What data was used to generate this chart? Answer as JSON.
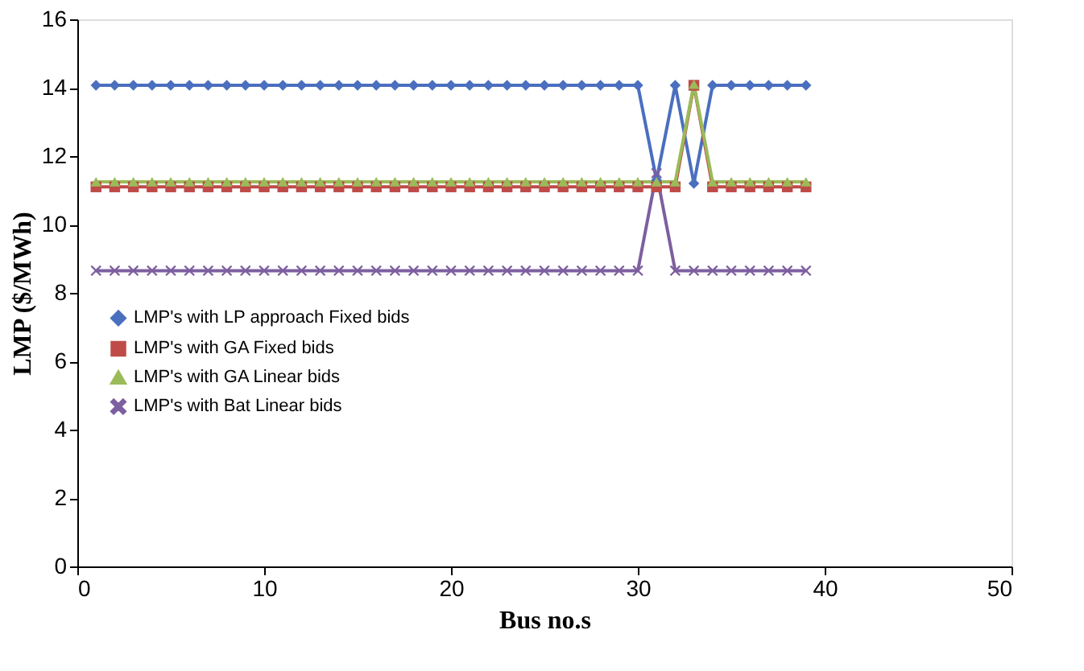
{
  "chart_data": {
    "type": "line",
    "xlabel": "Bus no.s",
    "ylabel": "LMP ($/MWh)",
    "x": [
      1,
      2,
      3,
      4,
      5,
      6,
      7,
      8,
      9,
      10,
      11,
      12,
      13,
      14,
      15,
      16,
      17,
      18,
      19,
      20,
      21,
      22,
      23,
      24,
      25,
      26,
      27,
      28,
      29,
      30,
      31,
      32,
      33,
      34,
      35,
      36,
      37,
      38,
      39
    ],
    "series": [
      {
        "name": "LMP's with LP approach Fixed bids",
        "color": "#4a6fbf",
        "marker": "diamond",
        "values": [
          14.07,
          14.07,
          14.07,
          14.07,
          14.07,
          14.07,
          14.07,
          14.07,
          14.07,
          14.07,
          14.07,
          14.07,
          14.07,
          14.07,
          14.07,
          14.07,
          14.07,
          14.07,
          14.07,
          14.07,
          14.07,
          14.07,
          14.07,
          14.07,
          14.07,
          14.07,
          14.07,
          14.07,
          14.07,
          14.07,
          11.3,
          14.07,
          11.2,
          14.07,
          14.07,
          14.07,
          14.07,
          14.07,
          14.07
        ]
      },
      {
        "name": "LMP's with GA Fixed bids",
        "color": "#be4b48",
        "marker": "square",
        "values": [
          11.1,
          11.1,
          11.1,
          11.1,
          11.1,
          11.1,
          11.1,
          11.1,
          11.1,
          11.1,
          11.1,
          11.1,
          11.1,
          11.1,
          11.1,
          11.1,
          11.1,
          11.1,
          11.1,
          11.1,
          11.1,
          11.1,
          11.1,
          11.1,
          11.1,
          11.1,
          11.1,
          11.1,
          11.1,
          11.1,
          11.1,
          11.1,
          14.07,
          11.1,
          11.1,
          11.1,
          11.1,
          11.1,
          11.1
        ]
      },
      {
        "name": "LMP's with GA Linear bids",
        "color": "#9bbb59",
        "marker": "triangle",
        "values": [
          11.25,
          11.25,
          11.25,
          11.25,
          11.25,
          11.25,
          11.25,
          11.25,
          11.25,
          11.25,
          11.25,
          11.25,
          11.25,
          11.25,
          11.25,
          11.25,
          11.25,
          11.25,
          11.25,
          11.25,
          11.25,
          11.25,
          11.25,
          11.25,
          11.25,
          11.25,
          11.25,
          11.25,
          11.25,
          11.25,
          11.25,
          11.25,
          14.1,
          11.25,
          11.25,
          11.25,
          11.25,
          11.25,
          11.25
        ]
      },
      {
        "name": "LMP's with Bat Linear bids",
        "color": "#7d5fa0",
        "marker": "cross",
        "values": [
          8.65,
          8.65,
          8.65,
          8.65,
          8.65,
          8.65,
          8.65,
          8.65,
          8.65,
          8.65,
          8.65,
          8.65,
          8.65,
          8.65,
          8.65,
          8.65,
          8.65,
          8.65,
          8.65,
          8.65,
          8.65,
          8.65,
          8.65,
          8.65,
          8.65,
          8.65,
          8.65,
          8.65,
          8.65,
          8.65,
          11.5,
          8.65,
          8.65,
          8.65,
          8.65,
          8.65,
          8.65,
          8.65,
          8.65
        ]
      }
    ],
    "xlim": [
      0,
      50
    ],
    "xticks": [
      0,
      10,
      20,
      30,
      40,
      50
    ],
    "ylim": [
      0,
      16
    ],
    "yticks": [
      0,
      2,
      4,
      6,
      8,
      10,
      12,
      14,
      16
    ],
    "grid": false,
    "legend": "left",
    "line_style": "solid"
  }
}
